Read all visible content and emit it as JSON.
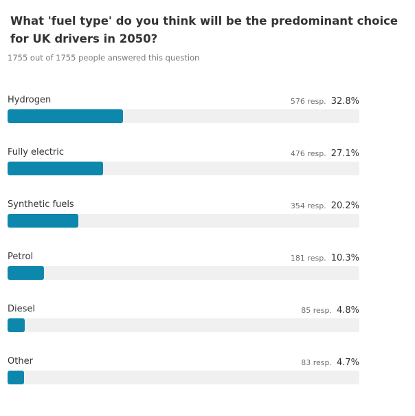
{
  "question": "What 'fuel type' do you think will be the predominant choice for UK drivers in 2050?",
  "summary": "1755 out of 1755 people answered this question",
  "colors": {
    "bar_fill": "#0e87ac",
    "bar_track": "#f0f0f0"
  },
  "options": [
    {
      "label": "Hydrogen",
      "responses": "576 resp.",
      "percent": "32.8%",
      "value": 32.8
    },
    {
      "label": "Fully electric",
      "responses": "476 resp.",
      "percent": "27.1%",
      "value": 27.1
    },
    {
      "label": "Synthetic fuels",
      "responses": "354 resp.",
      "percent": "20.2%",
      "value": 20.2
    },
    {
      "label": "Petrol",
      "responses": "181 resp.",
      "percent": "10.3%",
      "value": 10.3
    },
    {
      "label": "Diesel",
      "responses": "85 resp.",
      "percent": "4.8%",
      "value": 4.8
    },
    {
      "label": "Other",
      "responses": "83 resp.",
      "percent": "4.7%",
      "value": 4.7
    }
  ]
}
